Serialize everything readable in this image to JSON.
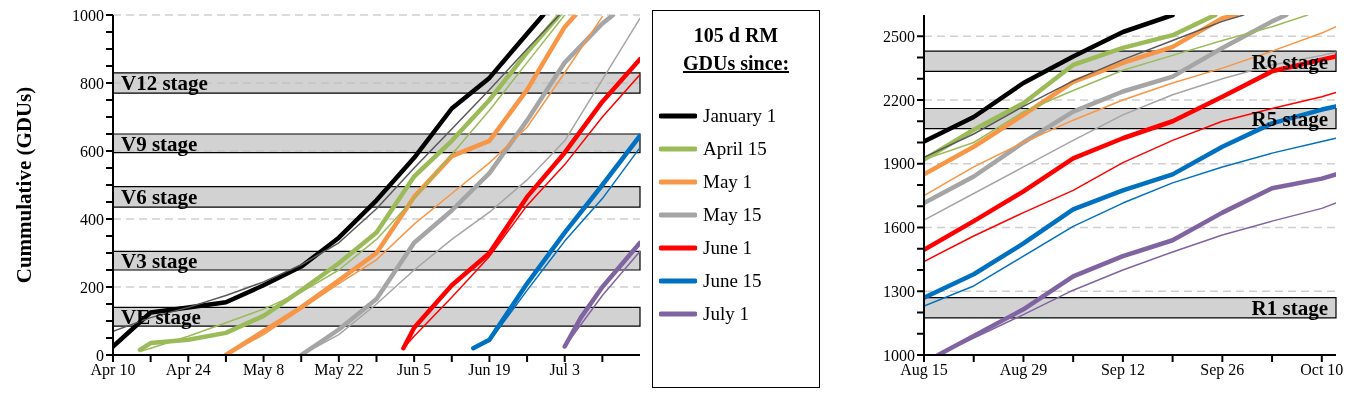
{
  "chart_data": [
    {
      "type": "line",
      "ylabel": "Cummulative (GDUs)",
      "legend_title": "105 d RM\nGDUs since:",
      "legend": "right",
      "grid": "y",
      "xlim": [
        "--04-10",
        "--07-17"
      ],
      "xticks": [
        {
          "value": "--04-10",
          "label": "Apr 10"
        },
        {
          "value": "--04-17",
          "label": null
        },
        {
          "value": "--04-24",
          "label": "Apr 24"
        },
        {
          "value": "--05-01",
          "label": null
        },
        {
          "value": "--05-08",
          "label": "May 8"
        },
        {
          "value": "--05-15",
          "label": null
        },
        {
          "value": "--05-22",
          "label": "May 22"
        },
        {
          "value": "--05-29",
          "label": null
        },
        {
          "value": "--06-05",
          "label": "Jun 5"
        },
        {
          "value": "--06-12",
          "label": null
        },
        {
          "value": "--06-19",
          "label": "Jun 19"
        },
        {
          "value": "--06-26",
          "label": null
        },
        {
          "value": "--07-03",
          "label": "Jul 3"
        },
        {
          "value": "--07-10",
          "label": null
        }
      ],
      "ylim": [
        0,
        1000
      ],
      "yticks": [
        0,
        {
          "value": 50,
          "label": null
        },
        {
          "value": 100,
          "label": null
        },
        {
          "value": 150,
          "label": null
        },
        200,
        {
          "value": 250,
          "label": null
        },
        {
          "value": 300,
          "label": null
        },
        {
          "value": 350,
          "label": null
        },
        400,
        {
          "value": 450,
          "label": null
        },
        {
          "value": 500,
          "label": null
        },
        {
          "value": 550,
          "label": null
        },
        600,
        {
          "value": 650,
          "label": null
        },
        {
          "value": 700,
          "label": null
        },
        {
          "value": 750,
          "label": null
        },
        800,
        {
          "value": 850,
          "label": null
        },
        {
          "value": 900,
          "label": null
        },
        {
          "value": 950,
          "label": null
        },
        1000
      ],
      "bands": [
        {
          "axis": "y",
          "from": 85,
          "to": 140,
          "label": "VE stage",
          "color": "#bfbfbf"
        },
        {
          "axis": "y",
          "from": 250,
          "to": 305,
          "label": "V3 stage",
          "color": "#bfbfbf"
        },
        {
          "axis": "y",
          "from": 435,
          "to": 495,
          "label": "V6 stage",
          "color": "#bfbfbf"
        },
        {
          "axis": "y",
          "from": 595,
          "to": 650,
          "label": "V9 stage",
          "color": "#bfbfbf"
        },
        {
          "axis": "y",
          "from": 770,
          "to": 830,
          "label": "V12 stage",
          "color": "#bfbfbf"
        }
      ],
      "series": [
        {
          "name": "January 1",
          "color": "#000000",
          "x": [
            "--04-10",
            "--04-17",
            "--04-24",
            "--05-01",
            "--05-08",
            "--05-15",
            "--05-22",
            "--05-29",
            "--06-05",
            "--06-12",
            "--06-19",
            "--06-26",
            "--06-29"
          ],
          "values": [
            25,
            125,
            140,
            155,
            205,
            260,
            345,
            455,
            580,
            725,
            815,
            945,
            1000
          ]
        },
        {
          "name": "April 15",
          "color": "#9bbb59",
          "x": [
            "--04-15",
            "--04-17",
            "--04-24",
            "--05-01",
            "--05-08",
            "--05-15",
            "--05-22",
            "--05-29",
            "--06-05",
            "--06-12",
            "--06-19",
            "--06-26",
            "--07-02"
          ],
          "values": [
            15,
            35,
            45,
            65,
            115,
            190,
            270,
            360,
            525,
            630,
            750,
            890,
            1000
          ]
        },
        {
          "name": "May 1",
          "color": "#f79646",
          "x": [
            "--05-01",
            "--05-08",
            "--05-15",
            "--05-22",
            "--05-29",
            "--06-05",
            "--06-12",
            "--06-19",
            "--06-26",
            "--07-03",
            "--07-05"
          ],
          "values": [
            0,
            70,
            140,
            220,
            300,
            465,
            585,
            630,
            780,
            965,
            1000
          ]
        },
        {
          "name": "May 15",
          "color": "#a5a5a5",
          "x": [
            "--05-15",
            "--05-22",
            "--05-29",
            "--06-05",
            "--06-12",
            "--06-19",
            "--06-26",
            "--07-03",
            "--07-10",
            "--07-12"
          ],
          "values": [
            0,
            75,
            165,
            330,
            425,
            535,
            690,
            860,
            975,
            1000
          ]
        },
        {
          "name": "June 1",
          "color": "#ff0000",
          "x": [
            "--06-03",
            "--06-05",
            "--06-12",
            "--06-19",
            "--06-26",
            "--07-03",
            "--07-10",
            "--07-17"
          ],
          "values": [
            20,
            80,
            205,
            300,
            465,
            595,
            745,
            870
          ]
        },
        {
          "name": "June 15",
          "color": "#0070c0",
          "x": [
            "--06-16",
            "--06-19",
            "--06-26",
            "--07-03",
            "--07-10",
            "--07-17"
          ],
          "values": [
            20,
            45,
            210,
            360,
            500,
            645
          ]
        },
        {
          "name": "July 1",
          "color": "#8064a2",
          "x": [
            "--07-03",
            "--07-06",
            "--07-10",
            "--07-17"
          ],
          "values": [
            25,
            110,
            200,
            330
          ]
        },
        {
          "color": "#595959",
          "x": [
            "--04-10",
            "--04-17",
            "--04-24",
            "--05-01",
            "--05-08",
            "--05-15",
            "--05-22",
            "--05-29",
            "--06-05",
            "--06-12",
            "--06-19",
            "--06-26",
            "--07-02"
          ],
          "values": [
            70,
            110,
            140,
            175,
            215,
            265,
            330,
            430,
            550,
            665,
            780,
            900,
            1000
          ]
        },
        {
          "color": "#9bbb59",
          "x": [
            "--04-15",
            "--04-17",
            "--04-24",
            "--05-01",
            "--05-08",
            "--05-15",
            "--05-22",
            "--05-29",
            "--06-05",
            "--06-12",
            "--06-19",
            "--06-26",
            "--07-03"
          ],
          "values": [
            10,
            20,
            55,
            95,
            135,
            185,
            250,
            340,
            460,
            590,
            720,
            860,
            1000
          ]
        },
        {
          "color": "#f79646",
          "x": [
            "--05-01",
            "--05-08",
            "--05-15",
            "--05-22",
            "--05-29",
            "--06-05",
            "--06-12",
            "--06-19",
            "--06-26",
            "--07-03",
            "--07-10"
          ],
          "values": [
            0,
            60,
            135,
            210,
            280,
            385,
            475,
            565,
            670,
            830,
            995
          ]
        },
        {
          "color": "#a5a5a5",
          "x": [
            "--05-15",
            "--05-22",
            "--05-29",
            "--06-05",
            "--06-12",
            "--06-19",
            "--06-26",
            "--07-03",
            "--07-10",
            "--07-17"
          ],
          "values": [
            0,
            60,
            150,
            250,
            340,
            420,
            515,
            630,
            810,
            990
          ]
        },
        {
          "color": "#ff0000",
          "x": [
            "--06-03",
            "--06-05",
            "--06-12",
            "--06-19",
            "--06-26",
            "--07-03",
            "--07-10",
            "--07-17"
          ],
          "values": [
            20,
            55,
            170,
            290,
            440,
            560,
            700,
            825
          ]
        },
        {
          "color": "#0070c0",
          "x": [
            "--06-16",
            "--06-19",
            "--06-26",
            "--07-03",
            "--07-10",
            "--07-17"
          ],
          "values": [
            20,
            40,
            190,
            335,
            460,
            610
          ]
        },
        {
          "color": "#8064a2",
          "x": [
            "--07-03",
            "--07-10",
            "--07-17"
          ],
          "values": [
            25,
            175,
            305
          ]
        }
      ]
    },
    {
      "type": "line",
      "grid": "y",
      "xlim": [
        "--08-15",
        "--10-12"
      ],
      "xticks": [
        {
          "value": "--08-15",
          "label": "Aug 15"
        },
        {
          "value": "--08-22",
          "label": null
        },
        {
          "value": "--08-29",
          "label": "Aug 29"
        },
        {
          "value": "--09-05",
          "label": null
        },
        {
          "value": "--09-12",
          "label": "Sep 12"
        },
        {
          "value": "--09-19",
          "label": null
        },
        {
          "value": "--09-26",
          "label": "Sep 26"
        },
        {
          "value": "--10-03",
          "label": null
        },
        {
          "value": "--10-10",
          "label": "Oct 10"
        }
      ],
      "ylim": [
        1000,
        2600
      ],
      "yticks": [
        1000,
        {
          "value": 1100,
          "label": null
        },
        {
          "value": 1200,
          "label": null
        },
        1300,
        {
          "value": 1400,
          "label": null
        },
        {
          "value": 1500,
          "label": null
        },
        1600,
        {
          "value": 1700,
          "label": null
        },
        {
          "value": 1800,
          "label": null
        },
        1900,
        {
          "value": 2000,
          "label": null
        },
        {
          "value": 2100,
          "label": null
        },
        2200,
        {
          "value": 2300,
          "label": null
        },
        {
          "value": 2400,
          "label": null
        },
        2500
      ],
      "bands": [
        {
          "axis": "y",
          "from": 1175,
          "to": 1270,
          "label": "R1 stage",
          "color": "#bfbfbf"
        },
        {
          "axis": "y",
          "from": 2065,
          "to": 2160,
          "label": "R5 stage",
          "color": "#bfbfbf"
        },
        {
          "axis": "y",
          "from": 2335,
          "to": 2430,
          "label": "R6 stage",
          "color": "#bfbfbf"
        }
      ],
      "series": [
        {
          "color": "#000000",
          "x": [
            "--08-15",
            "--08-22",
            "--08-29",
            "--09-05",
            "--09-12",
            "--09-19"
          ],
          "values": [
            2005,
            2120,
            2280,
            2405,
            2520,
            2600
          ]
        },
        {
          "color": "#9bbb59",
          "x": [
            "--08-15",
            "--08-22",
            "--08-29",
            "--09-05",
            "--09-12",
            "--09-19",
            "--09-25"
          ],
          "values": [
            1920,
            2060,
            2185,
            2365,
            2445,
            2505,
            2600
          ]
        },
        {
          "color": "#f79646",
          "x": [
            "--08-15",
            "--08-22",
            "--08-29",
            "--09-05",
            "--09-12",
            "--09-19",
            "--09-26",
            "--09-28"
          ],
          "values": [
            1850,
            1980,
            2130,
            2285,
            2375,
            2450,
            2585,
            2600
          ]
        },
        {
          "color": "#a5a5a5",
          "x": [
            "--08-15",
            "--08-22",
            "--08-29",
            "--09-05",
            "--09-12",
            "--09-19",
            "--09-26",
            "--10-03",
            "--10-05"
          ],
          "values": [
            1715,
            1840,
            2000,
            2145,
            2240,
            2310,
            2445,
            2570,
            2600
          ]
        },
        {
          "color": "#ff0000",
          "x": [
            "--08-15",
            "--08-22",
            "--08-29",
            "--09-05",
            "--09-12",
            "--09-19",
            "--09-26",
            "--10-03",
            "--10-10",
            "--10-12"
          ],
          "values": [
            1495,
            1630,
            1770,
            1925,
            2020,
            2100,
            2215,
            2335,
            2390,
            2405
          ]
        },
        {
          "color": "#0070c0",
          "x": [
            "--08-15",
            "--08-22",
            "--08-29",
            "--09-05",
            "--09-12",
            "--09-19",
            "--09-26",
            "--10-03",
            "--10-10",
            "--10-12"
          ],
          "values": [
            1270,
            1380,
            1525,
            1685,
            1775,
            1850,
            1980,
            2090,
            2155,
            2170
          ]
        },
        {
          "color": "#8064a2",
          "x": [
            "--08-17",
            "--08-22",
            "--08-29",
            "--09-05",
            "--09-12",
            "--09-19",
            "--09-26",
            "--10-03",
            "--10-10",
            "--10-12"
          ],
          "values": [
            1000,
            1090,
            1215,
            1370,
            1465,
            1540,
            1670,
            1785,
            1830,
            1850
          ]
        },
        {
          "color": "#595959",
          "x": [
            "--08-15",
            "--08-22",
            "--08-29",
            "--09-05",
            "--09-12",
            "--09-19",
            "--09-26",
            "--09-29"
          ],
          "values": [
            1930,
            2040,
            2170,
            2290,
            2390,
            2480,
            2570,
            2600
          ]
        },
        {
          "color": "#9bbb59",
          "x": [
            "--08-15",
            "--08-22",
            "--08-29",
            "--09-05",
            "--09-12",
            "--09-19",
            "--09-26",
            "--10-03",
            "--10-08"
          ],
          "values": [
            1920,
            2000,
            2145,
            2245,
            2340,
            2410,
            2480,
            2545,
            2600
          ]
        },
        {
          "color": "#f79646",
          "x": [
            "--08-15",
            "--08-22",
            "--08-29",
            "--09-05",
            "--09-12",
            "--09-19",
            "--09-26",
            "--10-03",
            "--10-10",
            "--10-12"
          ],
          "values": [
            1750,
            1885,
            2000,
            2105,
            2200,
            2280,
            2350,
            2430,
            2515,
            2545
          ]
        },
        {
          "color": "#a5a5a5",
          "x": [
            "--08-15",
            "--08-22",
            "--08-29",
            "--09-05",
            "--09-12",
            "--09-19",
            "--09-26",
            "--10-03",
            "--10-10",
            "--10-12"
          ],
          "values": [
            1635,
            1760,
            1885,
            2010,
            2130,
            2225,
            2300,
            2365,
            2410,
            2425
          ]
        },
        {
          "color": "#ff0000",
          "x": [
            "--08-15",
            "--08-22",
            "--08-29",
            "--09-05",
            "--09-12",
            "--09-19",
            "--09-26",
            "--10-03",
            "--10-10",
            "--10-12"
          ],
          "values": [
            1440,
            1560,
            1670,
            1775,
            1905,
            2010,
            2100,
            2160,
            2215,
            2235
          ]
        },
        {
          "color": "#0070c0",
          "x": [
            "--08-15",
            "--08-22",
            "--08-29",
            "--09-05",
            "--09-12",
            "--09-19",
            "--09-26",
            "--10-03",
            "--10-10",
            "--10-12"
          ],
          "values": [
            1230,
            1325,
            1465,
            1605,
            1715,
            1810,
            1885,
            1950,
            2005,
            2020
          ]
        },
        {
          "color": "#8064a2",
          "x": [
            "--08-17",
            "--08-22",
            "--08-29",
            "--09-05",
            "--09-12",
            "--09-19",
            "--09-26",
            "--10-03",
            "--10-10",
            "--10-12"
          ],
          "values": [
            1000,
            1080,
            1190,
            1305,
            1400,
            1485,
            1565,
            1630,
            1690,
            1715
          ]
        }
      ]
    }
  ]
}
